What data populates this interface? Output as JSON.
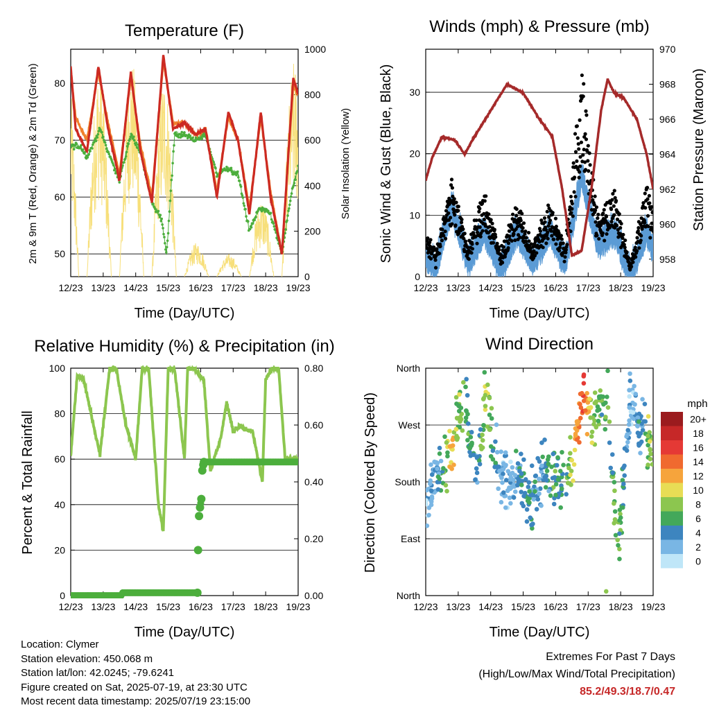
{
  "panels": {
    "temperature": {
      "title": "Temperature (F)",
      "xlabel": "Time (Day/UTC)",
      "ylabel_left": "2m & 9m T (Red, Orange) & 2m Td (Green)",
      "ylabel_right": "Solar Insolation (Yellow)"
    },
    "winds": {
      "title": "Winds (mph) & Pressure (mb)",
      "xlabel": "Time (Day/UTC)",
      "ylabel_left": "Sonic Wind & Gust (Blue, Black)",
      "ylabel_right": "Station Pressure (Maroon)"
    },
    "humidity": {
      "title": "Relative Humidity (%) & Precipitation (in)",
      "xlabel": "Time (Day/UTC)",
      "ylabel_left": "Percent & Total Rainfall"
    },
    "direction": {
      "title": "Wind Direction",
      "xlabel": "Time (Day/UTC)",
      "ylabel_left": "Direction (Colored By Speed)",
      "colorbar_title": "mph",
      "colorbar_labels": [
        "20+",
        "18",
        "16",
        "14",
        "12",
        "10",
        "8",
        "6",
        "4",
        "2",
        "0"
      ],
      "colorbar_colors": [
        "#9b1b1e",
        "#c62828",
        "#e53935",
        "#f06a2f",
        "#f6a43c",
        "#e8dd55",
        "#8cc64f",
        "#43a85a",
        "#3d85bf",
        "#79b6e4",
        "#bfe6f8"
      ]
    }
  },
  "info": {
    "location": "Location: Clymer",
    "elevation": "Station elevation: 450.068 m",
    "latlon": "Station lat/lon: 42.0245; -79.6241",
    "created": "Figure created on Sat, 2025-07-19, at 23:30 UTC",
    "recent": "Most recent data timestamp: 2025/07/19 23:15:00",
    "extremes_title": "Extremes For Past 7 Days",
    "extremes_legend": "(High/Low/Max Wind/Total Precipitation)",
    "extremes_values": "85.2/49.3/18.7/0.47"
  },
  "chart_data": [
    {
      "id": "temperature",
      "type": "line",
      "title": "Temperature (F)",
      "xlabel": "Time (Day/UTC)",
      "ylabel": "2m & 9m T (Red, Orange) & 2m Td (Green)",
      "ylabel_right": "Solar Insolation (Yellow)",
      "x_ticks": [
        "12/23",
        "13/23",
        "14/23",
        "15/23",
        "16/23",
        "17/23",
        "18/23",
        "19/23"
      ],
      "xlim": [
        0,
        7
      ],
      "ylim": [
        46,
        86
      ],
      "y_ticks": [
        50,
        60,
        70,
        80
      ],
      "ylim_right": [
        0,
        1000
      ],
      "y_ticks_right": [
        0,
        200,
        400,
        600,
        800,
        1000
      ],
      "grid": "horizontal",
      "colors": {
        "t2m": "#cc2a22",
        "t9m": "#f0802c",
        "td": "#4cae3c",
        "solar": "#f7df7a"
      },
      "series": [
        {
          "name": "2m T",
          "x": [
            0,
            0.15,
            0.5,
            0.85,
            1.15,
            1.5,
            1.85,
            2.15,
            2.5,
            2.85,
            3.15,
            3.5,
            3.85,
            4.15,
            4.5,
            4.85,
            5.15,
            5.5,
            5.85,
            6.15,
            6.5,
            6.85,
            7
          ],
          "values": [
            83,
            72,
            68,
            83,
            72,
            63,
            82,
            68,
            59,
            85,
            72,
            73,
            71,
            72,
            60,
            75,
            70,
            57,
            75,
            60,
            50,
            81,
            78
          ]
        },
        {
          "name": "9m T",
          "x": [
            0,
            0.15,
            0.5,
            0.85,
            1.15,
            1.5,
            1.85,
            2.15,
            2.5,
            2.85,
            3.15,
            3.5,
            3.85,
            4.15,
            4.5,
            4.85,
            5.15,
            5.5,
            5.85,
            6.15,
            6.5,
            6.85,
            7
          ],
          "values": [
            82,
            74,
            70,
            82,
            73,
            64,
            81,
            69,
            60,
            84,
            73,
            73,
            71,
            72,
            61,
            74,
            70,
            58,
            74,
            61,
            50,
            80,
            78
          ]
        },
        {
          "name": "2m Td",
          "x": [
            0,
            0.3,
            0.5,
            0.9,
            1.15,
            1.5,
            1.85,
            2.15,
            2.5,
            2.8,
            2.95,
            3.2,
            3.5,
            3.85,
            4.15,
            4.5,
            4.8,
            5.15,
            5.5,
            5.8,
            6.15,
            6.5,
            6.8,
            7
          ],
          "values": [
            69,
            69,
            67,
            72,
            68,
            63,
            71,
            68,
            59,
            56,
            50,
            71,
            71,
            70,
            71,
            64,
            65,
            64,
            54,
            58,
            57,
            50,
            61,
            65
          ]
        },
        {
          "name": "Solar Insolation",
          "axis": "right",
          "peak_day_fraction": [
            0.65,
            0.95
          ],
          "daily_peaks": [
            970,
            930,
            960,
            900,
            150,
            100,
            350,
            950
          ]
        }
      ]
    },
    {
      "id": "winds",
      "type": "line",
      "title": "Winds (mph) & Pressure (mb)",
      "xlabel": "Time (Day/UTC)",
      "ylabel": "Sonic Wind & Gust (Blue, Black)",
      "ylabel_right": "Station Pressure (Maroon)",
      "x_ticks": [
        "12/23",
        "13/23",
        "14/23",
        "15/23",
        "16/23",
        "17/23",
        "18/23",
        "19/23"
      ],
      "xlim": [
        0,
        7
      ],
      "ylim": [
        0,
        37
      ],
      "y_ticks": [
        0,
        10,
        20,
        30
      ],
      "ylim_right": [
        957,
        970
      ],
      "y_ticks_right": [
        958,
        960,
        962,
        964,
        966,
        968,
        970
      ],
      "grid": "horizontal",
      "colors": {
        "wind": "#5b9bd5",
        "gust": "#000000",
        "pressure": "#a52a2a"
      },
      "series": [
        {
          "name": "Sonic Wind",
          "x": [
            0,
            0.3,
            0.8,
            1.3,
            1.8,
            2.3,
            2.8,
            3.3,
            3.8,
            4.3,
            4.8,
            5.3,
            5.8,
            6.3,
            6.8,
            7
          ],
          "values": [
            4,
            2,
            12,
            3,
            8,
            2,
            8,
            3,
            8,
            3,
            17,
            6,
            8,
            1,
            8,
            5
          ]
        },
        {
          "name": "Gust",
          "x": [
            0,
            0.3,
            0.8,
            1.3,
            1.8,
            2.3,
            2.8,
            3.3,
            3.8,
            4.3,
            4.8,
            5.3,
            5.8,
            6.3,
            6.8,
            7
          ],
          "values": [
            8,
            4,
            16,
            5,
            14,
            4,
            12,
            5,
            12,
            5,
            34,
            10,
            14,
            2,
            15,
            10
          ]
        },
        {
          "name": "Station Pressure",
          "axis": "right",
          "x": [
            0,
            0.2,
            0.5,
            0.9,
            1.2,
            1.5,
            2.0,
            2.5,
            3.0,
            3.5,
            3.9,
            4.2,
            4.5,
            4.8,
            5.1,
            5.4,
            5.6,
            5.8,
            6.1,
            6.5,
            6.8,
            7
          ],
          "values": [
            962.5,
            963.8,
            965.0,
            964.8,
            964.0,
            965.0,
            966.5,
            968.0,
            967.5,
            966.0,
            965.0,
            962.0,
            958.2,
            958.5,
            962.0,
            966.5,
            968.3,
            967.5,
            967.2,
            966.0,
            964.0,
            962.0
          ]
        }
      ]
    },
    {
      "id": "humidity",
      "type": "line",
      "title": "Relative Humidity (%) & Precipitation (in)",
      "xlabel": "Time (Day/UTC)",
      "ylabel": "Percent & Total Rainfall",
      "x_ticks": [
        "12/23",
        "13/23",
        "14/23",
        "15/23",
        "16/23",
        "17/23",
        "18/23",
        "19/23"
      ],
      "xlim": [
        0,
        7
      ],
      "ylim": [
        0,
        100
      ],
      "y_ticks": [
        0,
        20,
        40,
        60,
        80,
        100
      ],
      "ylim_right": [
        0,
        0.8
      ],
      "y_ticks_right": [
        "0.00",
        "0.20",
        "0.40",
        "0.60",
        "0.80"
      ],
      "grid": "horizontal",
      "colors": {
        "rh": "#8cc64f",
        "precip": "#4cae3c"
      },
      "series": [
        {
          "name": "Relative Humidity",
          "x": [
            0,
            0.2,
            0.4,
            0.7,
            0.9,
            1.2,
            1.4,
            1.7,
            2.0,
            2.2,
            2.4,
            2.7,
            2.85,
            3.0,
            3.2,
            3.5,
            3.6,
            3.8,
            4.1,
            4.3,
            4.6,
            4.8,
            5.0,
            5.2,
            5.4,
            5.6,
            5.9,
            6.0,
            6.2,
            6.4,
            6.6,
            7.0
          ],
          "values": [
            62,
            97,
            95,
            75,
            62,
            100,
            100,
            75,
            60,
            100,
            100,
            40,
            28,
            100,
            100,
            60,
            100,
            100,
            95,
            55,
            68,
            85,
            72,
            75,
            73,
            72,
            50,
            95,
            100,
            100,
            60,
            60
          ]
        },
        {
          "name": "Total Precipitation",
          "axis": "right",
          "x": [
            0,
            1.55,
            1.6,
            3.9,
            3.92,
            3.95,
            3.98,
            4.02,
            4.05,
            4.08,
            4.1,
            4.5,
            7.0
          ],
          "values": [
            0.0,
            0.0,
            0.01,
            0.01,
            0.16,
            0.28,
            0.31,
            0.34,
            0.44,
            0.46,
            0.47,
            0.47,
            0.47
          ]
        }
      ]
    },
    {
      "id": "direction",
      "type": "scatter",
      "title": "Wind Direction",
      "xlabel": "Time (Day/UTC)",
      "ylabel": "Direction (Colored By Speed)",
      "x_ticks": [
        "12/23",
        "13/23",
        "14/23",
        "15/23",
        "16/23",
        "17/23",
        "18/23",
        "19/23"
      ],
      "xlim": [
        0,
        7
      ],
      "y_ticks": [
        "North",
        "East",
        "South",
        "West",
        "North"
      ],
      "ylim": [
        0,
        360
      ],
      "grid": "horizontal",
      "colorbar": {
        "title": "mph",
        "levels": [
          0,
          2,
          4,
          6,
          8,
          10,
          12,
          14,
          16,
          18,
          20
        ]
      },
      "series": [
        {
          "name": "Wind Direction",
          "x": [
            0.1,
            0.4,
            0.8,
            0.95,
            1.2,
            1.6,
            1.85,
            2.2,
            2.6,
            2.9,
            3.2,
            3.6,
            3.9,
            4.3,
            4.6,
            4.85,
            5.1,
            5.6,
            5.9,
            6.3,
            6.7,
            6.95
          ],
          "values": [
            150,
            200,
            230,
            280,
            300,
            190,
            320,
            200,
            180,
            200,
            150,
            200,
            185,
            190,
            240,
            320,
            270,
            330,
            60,
            320,
            250,
            240
          ],
          "speed": [
            2,
            3,
            11,
            8,
            6,
            4,
            9,
            3,
            2,
            4,
            5,
            3,
            6,
            4,
            12,
            16,
            8,
            6,
            7,
            2,
            4,
            9
          ]
        }
      ]
    }
  ]
}
